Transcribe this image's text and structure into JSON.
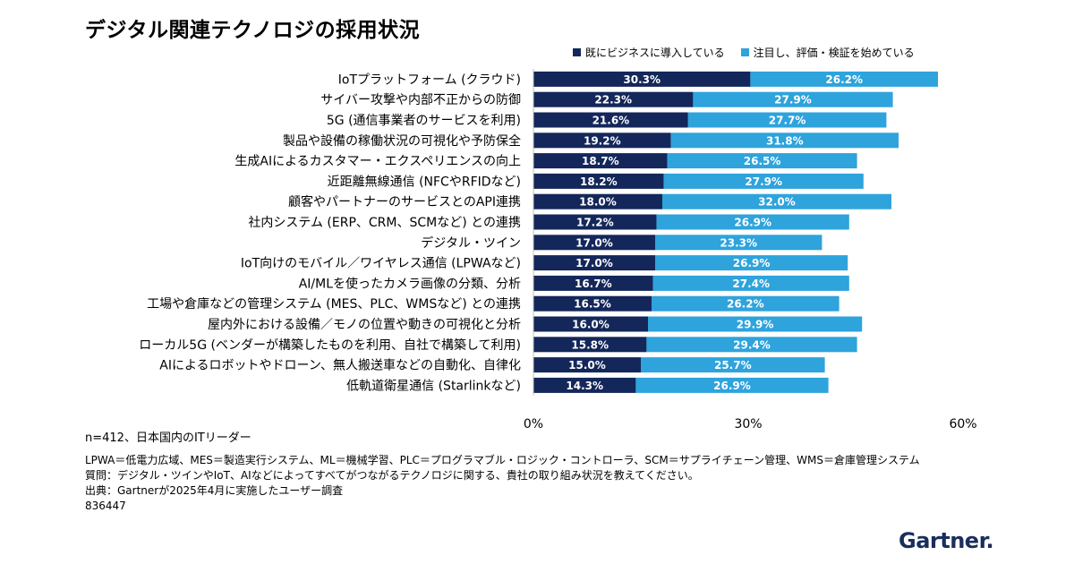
{
  "chart_data": {
    "type": "bar",
    "orientation": "horizontal",
    "stacked": true,
    "title": "デジタル関連テクノロジの採用状況",
    "categories": [
      "IoTプラットフォーム (クラウド)",
      "サイバー攻撃や内部不正からの防御",
      "5G (通信事業者のサービスを利用)",
      "製品や設備の稼働状況の可視化や予防保全",
      "生成AIによるカスタマー・エクスペリエンスの向上",
      "近距離無線通信 (NFCやRFIDなど)",
      "顧客やパートナーのサービスとのAPI連携",
      "社内システム (ERP、CRM、SCMなど) との連携",
      "デジタル・ツイン",
      "IoT向けのモバイル／ワイヤレス通信 (LPWAなど)",
      "AI/MLを使ったカメラ画像の分類、分析",
      "工場や倉庫などの管理システム (MES、PLC、WMSなど) との連携",
      "屋内外における設備／モノの位置や動きの可視化と分析",
      "ローカル5G (ベンダーが構築したものを利用、自社で構築して利用)",
      "AIによるロボットやドローン、無人搬送車などの自動化、自律化",
      "低軌道衛星通信 (Starlinkなど)"
    ],
    "series": [
      {
        "name": "既にビジネスに導入している",
        "color": "#14275a",
        "values": [
          30.3,
          22.3,
          21.6,
          19.2,
          18.7,
          18.2,
          18.0,
          17.2,
          17.0,
          17.0,
          16.7,
          16.5,
          16.0,
          15.8,
          15.0,
          14.3
        ],
        "labels": [
          "30.3%",
          "22.3%",
          "21.6%",
          "19.2%",
          "18.7%",
          "18.2%",
          "18.0%",
          "17.2%",
          "17.0%",
          "17.0%",
          "16.7%",
          "16.5%",
          "16.0%",
          "15.8%",
          "15.0%",
          "14.3%"
        ]
      },
      {
        "name": "注目し、評価・検証を始めている",
        "color": "#2ea3dc",
        "values": [
          26.2,
          27.9,
          27.7,
          31.8,
          26.5,
          27.9,
          32.0,
          26.9,
          23.3,
          26.9,
          27.4,
          26.2,
          29.9,
          29.4,
          25.7,
          26.9
        ],
        "labels": [
          "26.2%",
          "27.9%",
          "27.7%",
          "31.8%",
          "26.5%",
          "27.9%",
          "32.0%",
          "26.9%",
          "23.3%",
          "26.9%",
          "27.4%",
          "26.2%",
          "29.9%",
          "29.4%",
          "25.7%",
          "26.9%"
        ]
      }
    ],
    "xlim": [
      0,
      60
    ],
    "xticks": [
      "0%",
      "30%",
      "60%"
    ],
    "legend_position": "top-right",
    "grid": false
  },
  "notes": {
    "sample": "n=412、日本国内のITリーダー",
    "abbreviations": "LPWA＝低電力広域、MES＝製造実行システム、ML＝機械学習、PLC＝プログラマブル・ロジック・コントローラ、SCM＝サプライチェーン管理、WMS＝倉庫管理システム",
    "question": "質問：デジタル・ツインやIoT、AIなどによってすべてがつながるテクノロジに関する、貴社の取り組み状況を教えてください。",
    "source": "出典：Gartnerが2025年4月に実施したユーザー調査",
    "id": "836447"
  },
  "logo": {
    "text": "Gartner",
    "dot": "."
  }
}
